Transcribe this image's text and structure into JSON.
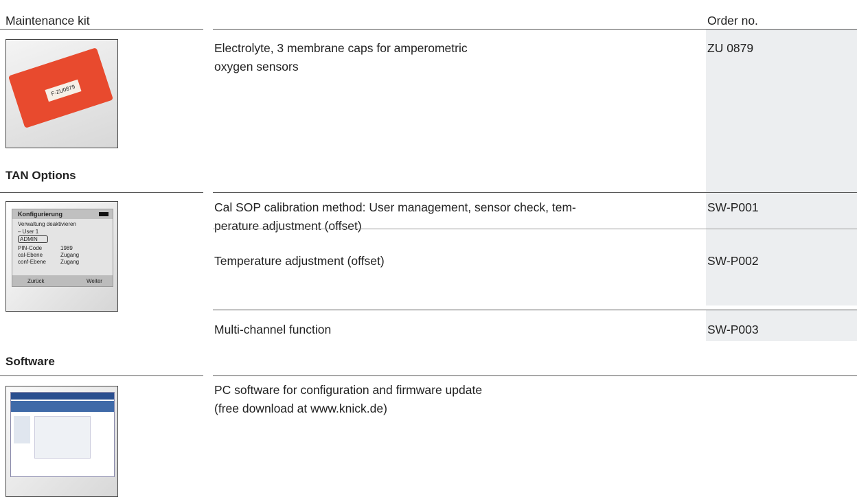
{
  "header": {
    "left": "Maintenance kit",
    "right": "Order no."
  },
  "sections": [
    {
      "title": null,
      "image": {
        "label": "F-ZU0879"
      },
      "items": [
        {
          "lines": [
            "Electrolyte, 3 membrane caps for amperometric",
            "oxygen sensors"
          ],
          "order_no": "ZU 0879"
        }
      ]
    },
    {
      "title": "TAN Options",
      "image": {
        "screen_title": "Konfigurierung",
        "rows": [
          "Verwaltung deaktivieren",
          "– User 1",
          "ADMIN"
        ],
        "fields": [
          [
            "PIN-Code",
            "1989"
          ],
          [
            "cal-Ebene",
            "Zugang"
          ],
          [
            "conf-Ebene",
            "Zugang"
          ]
        ],
        "buttons": [
          "Zurück",
          "Weiter"
        ]
      },
      "items": [
        {
          "lines": [
            "Cal SOP calibration method: User management, sensor check, tem-",
            "perature adjustment (offset)"
          ],
          "order_no": "SW-P001"
        },
        {
          "lines": [
            "Temperature adjustment (offset)"
          ],
          "order_no": "SW-P002"
        },
        {
          "lines": [
            "Multi-channel function"
          ],
          "order_no": "SW-P003"
        }
      ]
    },
    {
      "title": "Software",
      "image": null,
      "items": [
        {
          "lines": [
            "PC software for configuration and firmware update",
            "(free download at www.knick.de)"
          ],
          "order_no": null
        }
      ]
    }
  ]
}
